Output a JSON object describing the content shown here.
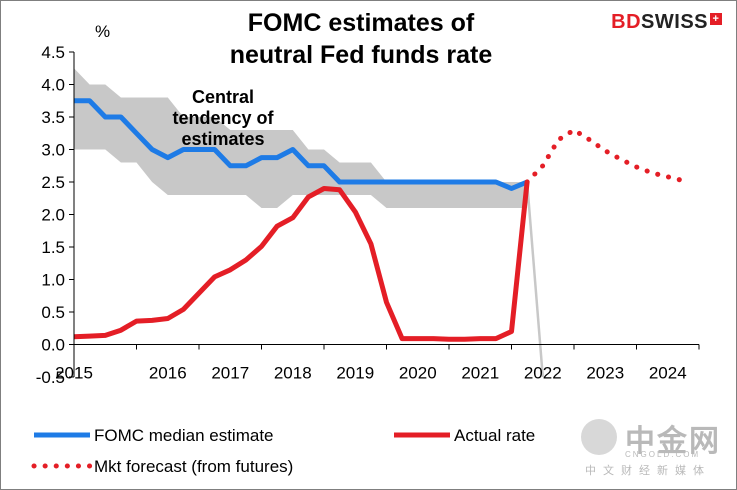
{
  "chart_data": {
    "type": "line",
    "title": "FOMC estimates of neutral Fed funds rate",
    "title_lines": [
      "FOMC estimates of",
      "neutral Fed funds rate"
    ],
    "ylabel": "%",
    "ylim": [
      -0.5,
      4.5
    ],
    "xlim": [
      2015,
      2025
    ],
    "y_ticks": [
      -0.5,
      0.0,
      0.5,
      1.0,
      1.5,
      2.0,
      2.5,
      3.0,
      3.5,
      4.0,
      4.5
    ],
    "y_tick_labels": [
      "-0.5",
      "0.0",
      "0.5",
      "1.0",
      "1.5",
      "2.0",
      "2.5",
      "3.0",
      "3.5",
      "4.0",
      "4.5"
    ],
    "x_ticks": [
      2015,
      2016,
      2017,
      2018,
      2019,
      2020,
      2021,
      2022,
      2023,
      2024
    ],
    "x_tick_labels": [
      "2015",
      "2016",
      "2017",
      "2018",
      "2019",
      "2020",
      "2021",
      "2022",
      "2023",
      "2024"
    ],
    "grid": false,
    "legend_position": "bottom",
    "band": {
      "label": "Central tendency of estimates",
      "label_lines": [
        "Central",
        "tendency of",
        "estimates"
      ],
      "color": "#c8c8c8",
      "x": [
        2015.0,
        2015.25,
        2015.5,
        2015.75,
        2016.0,
        2016.25,
        2016.5,
        2016.75,
        2017.0,
        2017.25,
        2017.5,
        2017.75,
        2018.0,
        2018.25,
        2018.5,
        2018.75,
        2019.0,
        2019.25,
        2019.5,
        2019.75,
        2020.0,
        2020.25,
        2020.5,
        2020.75,
        2021.0,
        2021.25,
        2021.5,
        2021.75,
        2022.0,
        2022.25
      ],
      "low": [
        3.0,
        3.0,
        3.0,
        2.8,
        2.8,
        2.5,
        2.3,
        2.3,
        2.3,
        2.3,
        2.3,
        2.3,
        2.1,
        2.1,
        2.3,
        2.3,
        2.3,
        2.3,
        2.3,
        2.3,
        2.1,
        2.1,
        2.1,
        2.1,
        2.1,
        2.1,
        2.1,
        2.1,
        2.1,
        2.1
      ],
      "high": [
        4.25,
        4.0,
        4.0,
        3.8,
        3.8,
        3.8,
        3.8,
        3.5,
        3.5,
        3.5,
        3.3,
        3.3,
        3.3,
        3.3,
        3.3,
        3.0,
        3.0,
        2.8,
        2.8,
        2.8,
        2.5,
        2.5,
        2.5,
        2.5,
        2.5,
        2.5,
        2.5,
        2.5,
        2.5,
        2.5
      ]
    },
    "series": [
      {
        "name": "FOMC median estimate",
        "style": "solid",
        "color": "#1e7be6",
        "x": [
          2015.0,
          2015.25,
          2015.5,
          2015.75,
          2016.0,
          2016.25,
          2016.5,
          2016.75,
          2017.0,
          2017.25,
          2017.5,
          2017.75,
          2018.0,
          2018.25,
          2018.5,
          2018.75,
          2019.0,
          2019.25,
          2019.5,
          2019.75,
          2020.0,
          2020.25,
          2020.5,
          2020.75,
          2021.0,
          2021.25,
          2021.5,
          2021.75,
          2022.0,
          2022.25
        ],
        "values": [
          3.75,
          3.75,
          3.5,
          3.5,
          3.25,
          3.0,
          2.875,
          3.0,
          3.0,
          3.0,
          2.75,
          2.75,
          2.875,
          2.875,
          3.0,
          2.75,
          2.75,
          2.5,
          2.5,
          2.5,
          2.5,
          2.5,
          2.5,
          2.5,
          2.5,
          2.5,
          2.5,
          2.5,
          2.4,
          2.5
        ]
      },
      {
        "name": "Actual rate",
        "style": "solid",
        "color": "#e41e26",
        "x": [
          2015.0,
          2015.25,
          2015.5,
          2015.75,
          2016.0,
          2016.25,
          2016.5,
          2016.75,
          2017.0,
          2017.25,
          2017.5,
          2017.75,
          2018.0,
          2018.25,
          2018.5,
          2018.75,
          2019.0,
          2019.25,
          2019.5,
          2019.75,
          2020.0,
          2020.25,
          2020.5,
          2020.75,
          2021.0,
          2021.25,
          2021.5,
          2021.75,
          2022.0,
          2022.25
        ],
        "values": [
          0.12,
          0.13,
          0.14,
          0.22,
          0.36,
          0.37,
          0.4,
          0.54,
          0.79,
          1.04,
          1.15,
          1.3,
          1.51,
          1.82,
          1.95,
          2.27,
          2.4,
          2.38,
          2.04,
          1.55,
          0.65,
          0.09,
          0.09,
          0.09,
          0.08,
          0.08,
          0.09,
          0.09,
          0.2,
          2.5
        ]
      },
      {
        "name": "Mkt forecast (from futures)",
        "style": "dotted",
        "color": "#e41e26",
        "x": [
          2022.25,
          2022.5,
          2022.75,
          2023.0,
          2023.25,
          2023.5,
          2023.75,
          2024.0,
          2024.25,
          2024.5,
          2024.75
        ],
        "values": [
          2.5,
          2.75,
          3.15,
          3.3,
          3.15,
          2.98,
          2.85,
          2.73,
          2.64,
          2.58,
          2.52
        ]
      }
    ],
    "unlabeled_line": {
      "color": "#c8c8c8",
      "x": [
        2022.25,
        2022.5
      ],
      "values": [
        2.5,
        -0.5
      ]
    }
  },
  "brand": {
    "bd": "BD",
    "swiss": "SWISS",
    "plus": "+"
  },
  "watermark": {
    "main": "中金网",
    "sub1": "CNGOLD.COM",
    "sub2": "中文财经新媒体"
  }
}
